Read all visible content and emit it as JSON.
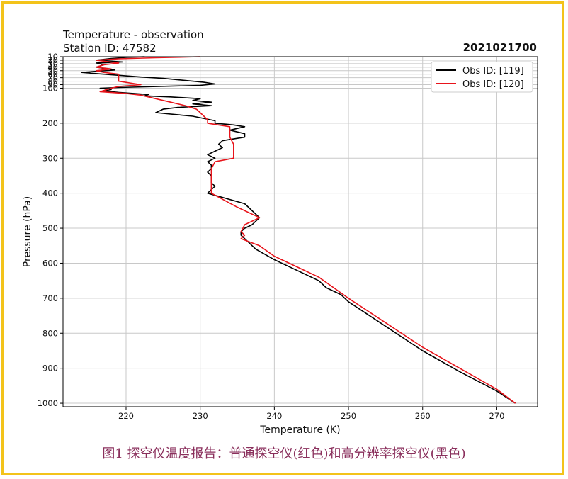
{
  "chart_data": {
    "type": "line",
    "title": "Temperature - observation",
    "subtitle": "Station ID: 47582",
    "date_label": "2021021700",
    "xlabel": "Temperature (K)",
    "ylabel": "Pressure (hPa)",
    "xlim": [
      211.5,
      275.5
    ],
    "ylim": [
      1010,
      10
    ],
    "y_inverted": true,
    "grid": true,
    "legend_position": "upper right",
    "x_ticks": [
      220,
      230,
      240,
      250,
      260,
      270
    ],
    "y_ticks": [
      10,
      20,
      30,
      40,
      50,
      60,
      70,
      80,
      90,
      100,
      200,
      300,
      400,
      500,
      600,
      700,
      800,
      900,
      1000
    ],
    "series": [
      {
        "name": "Obs ID: [119]",
        "color": "#000000",
        "points": [
          [
            222.5,
            10
          ],
          [
            220,
            12
          ],
          [
            218,
            15
          ],
          [
            216,
            20
          ],
          [
            217.5,
            22
          ],
          [
            219.5,
            25
          ],
          [
            216,
            28
          ],
          [
            217,
            33
          ],
          [
            216,
            40
          ],
          [
            218.5,
            48
          ],
          [
            214,
            55
          ],
          [
            217,
            60
          ],
          [
            222,
            68
          ],
          [
            225,
            72
          ],
          [
            228,
            78
          ],
          [
            230.5,
            83
          ],
          [
            232,
            88
          ],
          [
            230,
            92
          ],
          [
            219,
            98
          ],
          [
            216.5,
            100
          ],
          [
            218,
            104
          ],
          [
            217,
            108
          ],
          [
            219,
            112
          ],
          [
            221,
            115
          ],
          [
            223,
            118
          ],
          [
            222.5,
            122
          ],
          [
            226,
            125
          ],
          [
            230,
            130
          ],
          [
            229,
            135
          ],
          [
            231.5,
            140
          ],
          [
            229,
            145
          ],
          [
            231.5,
            150
          ],
          [
            227,
            155
          ],
          [
            225,
            160
          ],
          [
            224,
            170
          ],
          [
            229,
            180
          ],
          [
            232,
            193
          ],
          [
            232,
            200
          ],
          [
            234.5,
            205
          ],
          [
            236,
            210
          ],
          [
            234,
            220
          ],
          [
            236,
            230
          ],
          [
            236,
            240
          ],
          [
            233,
            250
          ],
          [
            232.5,
            260
          ],
          [
            233,
            270
          ],
          [
            232,
            280
          ],
          [
            231,
            290
          ],
          [
            232,
            300
          ],
          [
            231,
            310
          ],
          [
            231.5,
            320
          ],
          [
            231.5,
            330
          ],
          [
            231,
            340
          ],
          [
            231.5,
            350
          ],
          [
            231.5,
            360
          ],
          [
            231.5,
            370
          ],
          [
            232,
            380
          ],
          [
            231.5,
            390
          ],
          [
            231,
            400
          ],
          [
            236,
            430
          ],
          [
            238,
            470
          ],
          [
            237,
            490
          ],
          [
            236,
            500
          ],
          [
            235.5,
            510
          ],
          [
            235.5,
            520
          ],
          [
            237.5,
            560
          ],
          [
            240,
            590
          ],
          [
            243,
            620
          ],
          [
            246,
            650
          ],
          [
            247,
            670
          ],
          [
            249,
            690
          ],
          [
            250,
            710
          ],
          [
            255,
            780
          ],
          [
            260,
            850
          ],
          [
            265,
            910
          ],
          [
            270,
            965
          ],
          [
            272.5,
            1000
          ]
        ]
      },
      {
        "name": "Obs ID: [120]",
        "color": "#e8141b",
        "points": [
          [
            230,
            10
          ],
          [
            224,
            13
          ],
          [
            219,
            16
          ],
          [
            216,
            20
          ],
          [
            217.5,
            24
          ],
          [
            219,
            28
          ],
          [
            217,
            33
          ],
          [
            216,
            40
          ],
          [
            218,
            45
          ],
          [
            216,
            50
          ],
          [
            217,
            55
          ],
          [
            219,
            60
          ],
          [
            219,
            80
          ],
          [
            222,
            90
          ],
          [
            219,
            95
          ],
          [
            218,
            100
          ],
          [
            216.5,
            110
          ],
          [
            220,
            115
          ],
          [
            222,
            120
          ],
          [
            224,
            130
          ],
          [
            226,
            140
          ],
          [
            228,
            150
          ],
          [
            229.5,
            160
          ],
          [
            230,
            170
          ],
          [
            230.5,
            180
          ],
          [
            231,
            190
          ],
          [
            231,
            200
          ],
          [
            234,
            210
          ],
          [
            234,
            240
          ],
          [
            234.5,
            260
          ],
          [
            234.5,
            300
          ],
          [
            232,
            310
          ],
          [
            231.5,
            330
          ],
          [
            231.5,
            360
          ],
          [
            231.5,
            400
          ],
          [
            235,
            440
          ],
          [
            238,
            470
          ],
          [
            236,
            490
          ],
          [
            235.5,
            510
          ],
          [
            236,
            520
          ],
          [
            235.5,
            530
          ],
          [
            238,
            550
          ],
          [
            240,
            580
          ],
          [
            243,
            610
          ],
          [
            246,
            640
          ],
          [
            248,
            670
          ],
          [
            250,
            700
          ],
          [
            255,
            770
          ],
          [
            260,
            840
          ],
          [
            265,
            900
          ],
          [
            270,
            960
          ],
          [
            272.5,
            1000
          ]
        ]
      }
    ]
  },
  "caption": "图1 探空仪温度报告：普通探空仪(红色)和高分辨率探空仪(黑色)"
}
